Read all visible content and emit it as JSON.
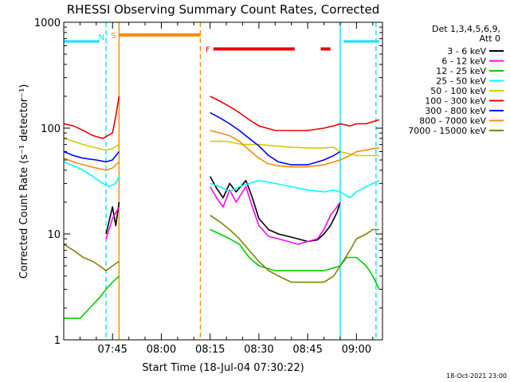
{
  "chart_data": {
    "type": "line",
    "title": "RHESSI Observing Summary Count Rates, Corrected",
    "xlabel": "Start Time (18-Jul-04 07:30:22)",
    "ylabel": "Corrected Count Rate (s⁻¹ detector⁻¹)",
    "y_scale": "log",
    "ylim": [
      1,
      1000
    ],
    "xlim": [
      "07:30",
      "09:08"
    ],
    "x_ticks": [
      "07:45",
      "08:00",
      "08:15",
      "08:30",
      "08:45",
      "09:00"
    ],
    "y_ticks": [
      "1",
      "10",
      "100",
      "1000"
    ],
    "legend_header": [
      "Det 1,3,4,5,6,9,",
      "Att 0"
    ],
    "legend_position": "right",
    "footer": "18-Oct-2021 23:00",
    "series": [
      {
        "name": "3 - 6 keV",
        "color": "#000000",
        "x": [
          "07:30",
          "07:35",
          "07:40",
          "07:43",
          "07:45",
          "07:46",
          "07:47",
          "08:13",
          "08:15",
          "08:17",
          "08:19",
          "08:21",
          "08:23",
          "08:26",
          "08:28",
          "08:30",
          "08:33",
          "08:36",
          "08:39",
          "08:42",
          "08:45",
          "08:48",
          "08:50",
          "08:52",
          "08:54",
          "08:55"
        ],
        "values": [
          null,
          null,
          null,
          10,
          18,
          12,
          20,
          null,
          35,
          27,
          22,
          30,
          25,
          32,
          22,
          14,
          11,
          10,
          9.5,
          9,
          8.5,
          8.8,
          10,
          12,
          16,
          20
        ]
      },
      {
        "name": "6 - 12 keV",
        "color": "#ff00ff",
        "x": [
          "07:43",
          "07:45",
          "07:47",
          "08:13",
          "08:15",
          "08:17",
          "08:19",
          "08:21",
          "08:23",
          "08:26",
          "08:28",
          "08:30",
          "08:33",
          "08:36",
          "08:39",
          "08:42",
          "08:45",
          "08:48",
          "08:50",
          "08:52",
          "08:54",
          "08:55"
        ],
        "values": [
          9,
          14,
          18,
          null,
          28,
          22,
          18,
          26,
          20,
          28,
          18,
          12,
          9.5,
          9,
          8.5,
          8,
          8.5,
          9,
          11,
          15,
          18,
          20
        ]
      },
      {
        "name": "12 - 25 keV",
        "color": "#00cc00",
        "x": [
          "07:30",
          "07:35",
          "07:38",
          "07:41",
          "07:43",
          "07:45",
          "07:47",
          "08:13",
          "08:15",
          "08:18",
          "08:21",
          "08:24",
          "08:27",
          "08:30",
          "08:35",
          "08:40",
          "08:45",
          "08:50",
          "08:55",
          "08:57",
          "09:00",
          "09:03",
          "09:05",
          "09:07"
        ],
        "values": [
          1.6,
          1.6,
          2,
          2.5,
          3,
          3.5,
          4,
          null,
          11,
          10,
          9,
          8,
          6,
          5,
          4.5,
          4.5,
          4.5,
          4.5,
          5,
          6,
          6,
          5,
          4,
          3
        ]
      },
      {
        "name": "25 - 50 keV",
        "color": "#00ffff",
        "x": [
          "07:30",
          "07:33",
          "07:36",
          "07:39",
          "07:42",
          "07:44",
          "07:46",
          "07:47",
          "08:13",
          "08:15",
          "08:18",
          "08:21",
          "08:24",
          "08:27",
          "08:30",
          "08:35",
          "08:40",
          "08:45",
          "08:50",
          "08:53",
          "08:55",
          "08:58",
          "09:00",
          "09:03",
          "09:05",
          "09:07"
        ],
        "values": [
          48,
          44,
          40,
          35,
          30,
          28,
          30,
          35,
          null,
          30,
          28,
          25,
          28,
          30,
          32,
          30,
          28,
          26,
          25,
          26,
          25,
          22,
          25,
          28,
          30,
          32
        ]
      },
      {
        "name": "50 - 100 keV",
        "color": "#cccc00",
        "x": [
          "07:30",
          "07:33",
          "07:36",
          "07:40",
          "07:43",
          "07:45",
          "07:47",
          "08:13",
          "08:15",
          "08:20",
          "08:25",
          "08:30",
          "08:35",
          "08:40",
          "08:45",
          "08:50",
          "08:53",
          "08:55",
          "09:00",
          "09:03",
          "09:05",
          "09:07"
        ],
        "values": [
          80,
          75,
          70,
          65,
          62,
          64,
          70,
          null,
          75,
          75,
          70,
          70,
          68,
          66,
          65,
          65,
          66,
          60,
          55,
          55,
          55,
          55
        ]
      },
      {
        "name": "100 - 300 keV",
        "color": "#ee0000",
        "x": [
          "07:30",
          "07:33",
          "07:36",
          "07:39",
          "07:42",
          "07:45",
          "07:46",
          "07:47",
          "08:13",
          "08:15",
          "08:18",
          "08:21",
          "08:24",
          "08:27",
          "08:30",
          "08:35",
          "08:40",
          "08:45",
          "08:50",
          "08:53",
          "08:55",
          "08:58",
          "09:00",
          "09:03",
          "09:05",
          "09:07"
        ],
        "values": [
          110,
          105,
          95,
          85,
          80,
          90,
          130,
          200,
          null,
          200,
          180,
          160,
          140,
          120,
          105,
          95,
          95,
          95,
          100,
          105,
          110,
          105,
          110,
          110,
          115,
          120
        ]
      },
      {
        "name": "300 - 800 keV",
        "color": "#0000ff",
        "x": [
          "07:30",
          "07:33",
          "07:36",
          "07:40",
          "07:43",
          "07:45",
          "07:47",
          "08:13",
          "08:15",
          "08:18",
          "08:21",
          "08:24",
          "08:27",
          "08:30",
          "08:33",
          "08:36",
          "08:40",
          "08:45",
          "08:50",
          "08:53",
          "08:55"
        ],
        "values": [
          60,
          55,
          52,
          50,
          48,
          50,
          60,
          null,
          140,
          125,
          110,
          95,
          80,
          68,
          55,
          48,
          45,
          45,
          50,
          55,
          60
        ]
      },
      {
        "name": "800 - 7000 keV",
        "color": "#ff8800",
        "x": [
          "07:30",
          "07:33",
          "07:36",
          "07:40",
          "07:43",
          "07:45",
          "07:47",
          "08:13",
          "08:15",
          "08:18",
          "08:21",
          "08:24",
          "08:27",
          "08:30",
          "08:33",
          "08:36",
          "08:40",
          "08:45",
          "08:50",
          "08:53",
          "08:55",
          "08:58",
          "09:00",
          "09:03",
          "09:05",
          "09:07"
        ],
        "values": [
          52,
          48,
          45,
          42,
          40,
          42,
          48,
          null,
          95,
          90,
          85,
          75,
          62,
          52,
          46,
          44,
          43,
          43,
          45,
          48,
          50,
          55,
          60,
          62,
          64,
          65
        ]
      },
      {
        "name": "7000 - 15000 keV",
        "color": "#808000",
        "x": [
          "07:30",
          "07:33",
          "07:36",
          "07:39",
          "07:41",
          "07:43",
          "07:45",
          "07:47",
          "08:13",
          "08:15",
          "08:18",
          "08:21",
          "08:24",
          "08:27",
          "08:30",
          "08:33",
          "08:36",
          "08:40",
          "08:45",
          "08:50",
          "08:53",
          "08:55",
          "08:58",
          "09:00",
          "09:03",
          "09:05",
          "09:07"
        ],
        "values": [
          8,
          7,
          6,
          5.5,
          5,
          4.5,
          5,
          5.5,
          null,
          15,
          13,
          11,
          9,
          7,
          5.5,
          4.5,
          4,
          3.5,
          3.5,
          3.5,
          4,
          5,
          7,
          9,
          10,
          11,
          11
        ]
      }
    ],
    "top_level_line": {
      "color": "#00e5ff",
      "y": 660,
      "segments": [
        [
          "07:30",
          "07:41"
        ],
        [
          "08:56",
          "09:07"
        ]
      ]
    },
    "flag_bars": [
      {
        "label": "S",
        "color": "#ff8800",
        "y": 760,
        "from": "07:47",
        "to": "08:12"
      },
      {
        "label": "F",
        "color": "#ee0000",
        "y": 560,
        "segments": [
          [
            "08:16",
            "08:41"
          ],
          [
            "08:49",
            "08:52"
          ]
        ]
      }
    ],
    "marker_labels": [
      {
        "text": "N",
        "color": "#00e5ff",
        "at": "07:43"
      }
    ],
    "vertical_markers": [
      {
        "at": "07:43",
        "color": "#00e5ff",
        "style": "dashed"
      },
      {
        "at": "07:47",
        "color": "#ff8800",
        "style": "solid"
      },
      {
        "at": "08:12",
        "color": "#ff8800",
        "style": "dashed"
      },
      {
        "at": "08:55",
        "color": "#00e5ff",
        "style": "solid"
      },
      {
        "at": "09:06",
        "color": "#00e5ff",
        "style": "dashed"
      }
    ]
  }
}
